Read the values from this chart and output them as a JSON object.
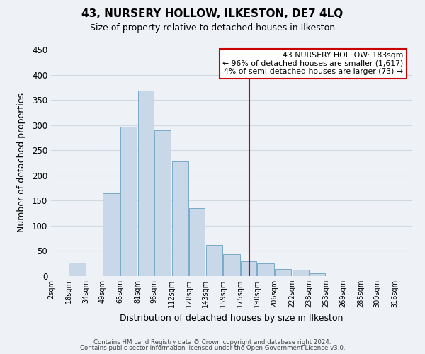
{
  "title": "43, NURSERY HOLLOW, ILKESTON, DE7 4LQ",
  "subtitle": "Size of property relative to detached houses in Ilkeston",
  "xlabel": "Distribution of detached houses by size in Ilkeston",
  "ylabel": "Number of detached properties",
  "footer_line1": "Contains HM Land Registry data © Crown copyright and database right 2024.",
  "footer_line2": "Contains public sector information licensed under the Open Government Licence v3.0.",
  "bar_left_edges": [
    2,
    18,
    34,
    49,
    65,
    81,
    96,
    112,
    128,
    143,
    159,
    175,
    190,
    206,
    222,
    238,
    253,
    269,
    285,
    300
  ],
  "bar_heights": [
    0,
    27,
    0,
    165,
    297,
    368,
    290,
    228,
    135,
    62,
    43,
    30,
    25,
    14,
    13,
    5,
    0,
    0,
    0,
    0
  ],
  "bar_color": "#c8d8e8",
  "bar_edge_color": "#7aaac8",
  "reference_line_x": 183,
  "reference_line_color": "#cc0000",
  "annotation_title": "43 NURSERY HOLLOW: 183sqm",
  "annotation_line1": "← 96% of detached houses are smaller (1,617)",
  "annotation_line2": "4% of semi-detached houses are larger (73) →",
  "xtick_labels": [
    "2sqm",
    "18sqm",
    "34sqm",
    "49sqm",
    "65sqm",
    "81sqm",
    "96sqm",
    "112sqm",
    "128sqm",
    "143sqm",
    "159sqm",
    "175sqm",
    "190sqm",
    "206sqm",
    "222sqm",
    "238sqm",
    "253sqm",
    "269sqm",
    "285sqm",
    "300sqm",
    "316sqm"
  ],
  "xtick_positions": [
    2,
    18,
    34,
    49,
    65,
    81,
    96,
    112,
    128,
    143,
    159,
    175,
    190,
    206,
    222,
    238,
    253,
    269,
    285,
    300,
    316
  ],
  "ylim": [
    0,
    450
  ],
  "xlim": [
    2,
    332
  ],
  "yticks": [
    0,
    50,
    100,
    150,
    200,
    250,
    300,
    350,
    400,
    450
  ],
  "grid_color": "#d0d8e0",
  "background_color": "#eef2f6",
  "plot_bg_color": "#eef2f6"
}
